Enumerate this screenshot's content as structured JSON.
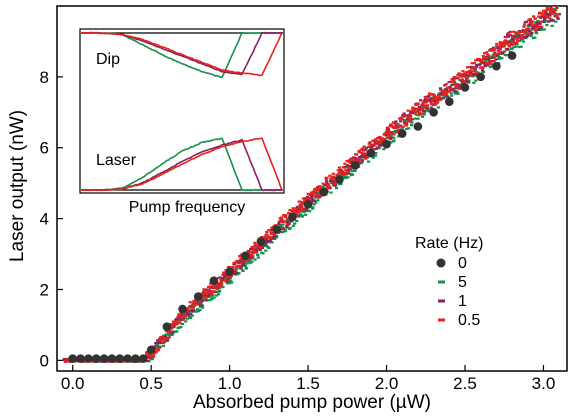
{
  "chart_data": {
    "type": "scatter",
    "xlabel": "Absorbed pump power (µW)",
    "ylabel": "Laser output (nW)",
    "xlim": [
      -0.1,
      3.15
    ],
    "ylim": [
      -0.3,
      10.0
    ],
    "xticks": [
      "0.0",
      "0.5",
      "1.0",
      "1.5",
      "2.0",
      "2.5",
      "3.0"
    ],
    "yticks": [
      "0",
      "2",
      "4",
      "6",
      "8"
    ],
    "legend_title": "Rate (Hz)",
    "legend_position": "right-center",
    "series": [
      {
        "name": "0",
        "marker": "circle",
        "color": "#333333",
        "x": [
          0.0,
          0.05,
          0.1,
          0.15,
          0.2,
          0.25,
          0.3,
          0.35,
          0.4,
          0.45,
          0.5,
          0.6,
          0.7,
          0.8,
          0.9,
          1.0,
          1.1,
          1.2,
          1.3,
          1.4,
          1.5,
          1.6,
          1.7,
          1.8,
          1.9,
          2.0,
          2.1,
          2.2,
          2.3,
          2.4,
          2.5,
          2.6,
          2.7,
          2.8
        ],
        "y": [
          0.05,
          0.05,
          0.05,
          0.05,
          0.05,
          0.05,
          0.05,
          0.05,
          0.05,
          0.05,
          0.3,
          0.95,
          1.45,
          1.8,
          2.25,
          2.5,
          2.95,
          3.35,
          3.7,
          4.05,
          4.4,
          4.75,
          5.1,
          5.5,
          5.85,
          6.1,
          6.4,
          6.6,
          7.0,
          7.3,
          7.7,
          8.0,
          8.3,
          8.6
        ]
      },
      {
        "name": "5",
        "marker": "dash",
        "color": "#11934a",
        "x": [
          -0.05,
          0.45,
          0.5,
          0.7,
          1.0,
          1.3,
          1.6,
          1.9,
          2.2,
          2.5,
          2.8,
          3.1
        ],
        "y": [
          0.0,
          0.0,
          0.15,
          1.15,
          2.3,
          3.55,
          4.75,
          5.85,
          6.95,
          7.85,
          8.9,
          9.8
        ]
      },
      {
        "name": "1",
        "marker": "dash",
        "color": "#8b2060",
        "x": [
          -0.05,
          0.45,
          0.5,
          0.7,
          1.0,
          1.3,
          1.6,
          1.9,
          2.2,
          2.5,
          2.8,
          3.1
        ],
        "y": [
          0.0,
          0.0,
          0.2,
          1.25,
          2.45,
          3.7,
          4.85,
          5.95,
          7.1,
          7.95,
          9.1,
          9.9
        ]
      },
      {
        "name": "0.5",
        "marker": "dash",
        "color": "#e8221b",
        "x": [
          -0.05,
          0.45,
          0.5,
          0.7,
          1.0,
          1.3,
          1.6,
          1.9,
          2.2,
          2.5,
          2.8,
          3.1
        ],
        "y": [
          0.0,
          0.0,
          0.2,
          1.3,
          2.5,
          3.75,
          4.9,
          6.0,
          7.1,
          8.0,
          9.1,
          9.95
        ]
      }
    ],
    "inset": {
      "xlabel": "Pump frequency",
      "labels": [
        "Dip",
        "Laser"
      ],
      "x": [
        0.0,
        0.1,
        0.2,
        0.3,
        0.4,
        0.5,
        0.6,
        0.7,
        0.8,
        0.9,
        1.0
      ],
      "dip": [
        {
          "name": "5",
          "color": "#11934a",
          "y": [
            1.0,
            1.0,
            0.98,
            0.85,
            0.72,
            0.6,
            0.5,
            0.42,
            1.0,
            1.0,
            1.0
          ]
        },
        {
          "name": "1",
          "color": "#8b2060",
          "y": [
            1.0,
            1.0,
            0.98,
            0.9,
            0.8,
            0.7,
            0.6,
            0.5,
            0.46,
            1.0,
            1.0
          ]
        },
        {
          "name": "0.5",
          "color": "#e8221b",
          "y": [
            1.0,
            1.0,
            0.98,
            0.92,
            0.82,
            0.72,
            0.62,
            0.52,
            0.48,
            0.45,
            1.0
          ]
        }
      ],
      "laser": [
        {
          "name": "5",
          "color": "#11934a",
          "y": [
            0.0,
            0.0,
            0.02,
            0.14,
            0.3,
            0.45,
            0.55,
            0.6,
            0.0,
            0.0,
            0.0
          ]
        },
        {
          "name": "1",
          "color": "#8b2060",
          "y": [
            0.0,
            0.0,
            0.01,
            0.08,
            0.2,
            0.33,
            0.44,
            0.52,
            0.58,
            0.0,
            0.0
          ]
        },
        {
          "name": "0.5",
          "color": "#e8221b",
          "y": [
            0.0,
            0.0,
            0.01,
            0.07,
            0.18,
            0.3,
            0.41,
            0.5,
            0.56,
            0.6,
            0.0
          ]
        }
      ]
    }
  }
}
